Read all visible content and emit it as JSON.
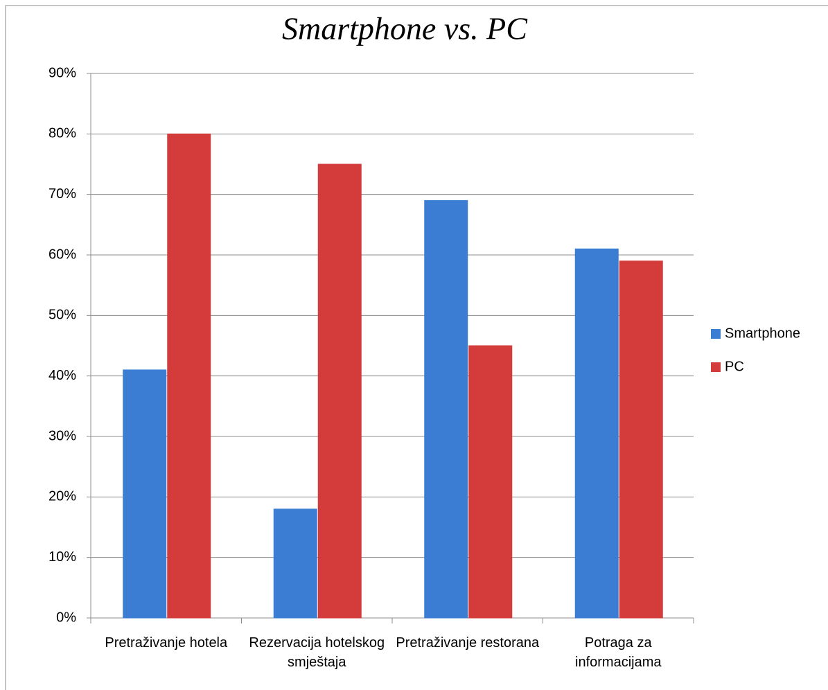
{
  "chart_data": {
    "type": "bar",
    "title": "Smartphone vs. PC",
    "categories": [
      "Pretraživanje hotela",
      "Rezervacija hotelskog smještaja",
      "Pretraživanje restorana",
      "Potraga za informacijama"
    ],
    "series": [
      {
        "name": "Smartphone",
        "color": "#3b7dd2",
        "values": [
          41,
          18,
          69,
          61
        ]
      },
      {
        "name": "PC",
        "color": "#d43b3b",
        "values": [
          80,
          75,
          45,
          59
        ]
      }
    ],
    "ylim": [
      0,
      90
    ],
    "yticks": [
      {
        "value": 0,
        "label": "0%"
      },
      {
        "value": 10,
        "label": "10%"
      },
      {
        "value": 20,
        "label": "20%"
      },
      {
        "value": 30,
        "label": "30%"
      },
      {
        "value": 40,
        "label": "40%"
      },
      {
        "value": 50,
        "label": "50%"
      },
      {
        "value": 60,
        "label": "60%"
      },
      {
        "value": 70,
        "label": "70%"
      },
      {
        "value": 80,
        "label": "80%"
      },
      {
        "value": 90,
        "label": "90%"
      }
    ],
    "grid": true,
    "legend": "right"
  }
}
